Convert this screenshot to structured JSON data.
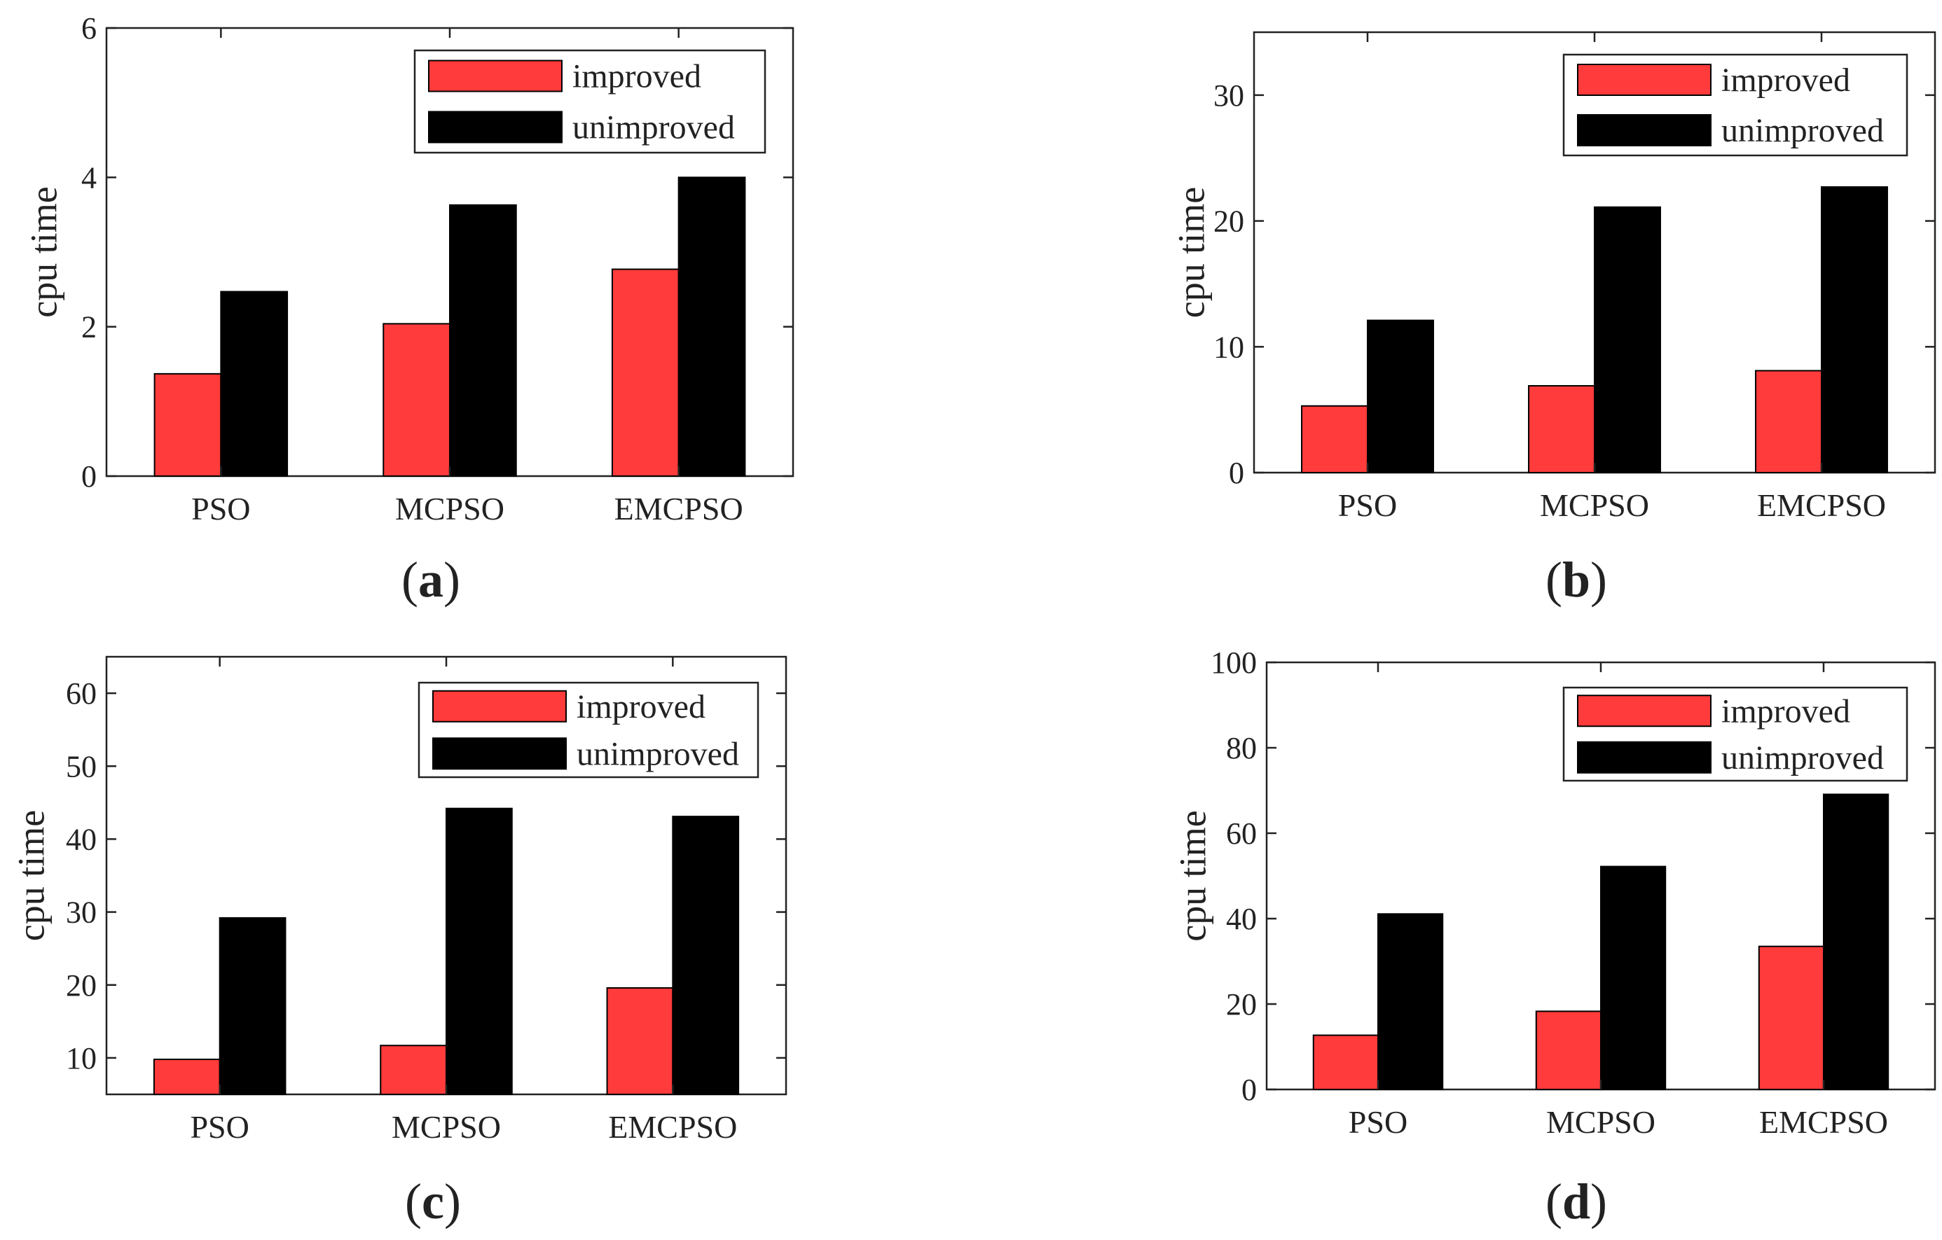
{
  "colors": {
    "improved": "#ff3b3b",
    "unimproved": "#000000",
    "axis": "#222222"
  },
  "chart_data": [
    {
      "type": "bar",
      "panel": "a",
      "panel_label": "a",
      "categories": [
        "PSO",
        "MCPSO",
        "EMCPSO"
      ],
      "series": [
        {
          "name": "improved",
          "values": [
            1.37,
            2.04,
            2.77
          ]
        },
        {
          "name": "unimproved",
          "values": [
            2.47,
            3.63,
            4.0
          ]
        }
      ],
      "ylabel": "cpu time",
      "xlabel": "",
      "ylim": [
        0,
        6
      ],
      "yticks": [
        0,
        2,
        4,
        6
      ],
      "ytick_labels": [
        "0",
        "2",
        "4",
        "6"
      ],
      "legend": [
        "improved",
        "unimproved"
      ],
      "legend_position": "top-right"
    },
    {
      "type": "bar",
      "panel": "b",
      "panel_label": "b",
      "categories": [
        "PSO",
        "MCPSO",
        "EMCPSO"
      ],
      "series": [
        {
          "name": "improved",
          "values": [
            5.3,
            6.9,
            8.1
          ]
        },
        {
          "name": "unimproved",
          "values": [
            12.1,
            21.1,
            22.7
          ]
        }
      ],
      "ylabel": "cpu time",
      "xlabel": "",
      "ylim": [
        0,
        35
      ],
      "yticks": [
        0,
        10,
        20,
        30
      ],
      "ytick_labels": [
        "0",
        "10",
        "20",
        "30"
      ],
      "legend": [
        "improved",
        "unimproved"
      ],
      "legend_position": "top-right"
    },
    {
      "type": "bar",
      "panel": "c",
      "panel_label": "c",
      "categories": [
        "PSO",
        "MCPSO",
        "EMCPSO"
      ],
      "series": [
        {
          "name": "improved",
          "values": [
            9.8,
            11.7,
            19.6
          ]
        },
        {
          "name": "unimproved",
          "values": [
            29.2,
            44.2,
            43.1
          ]
        }
      ],
      "ylabel": "cpu time",
      "xlabel": "",
      "ylim": [
        5,
        65
      ],
      "yticks": [
        10,
        20,
        30,
        40,
        50,
        60
      ],
      "ytick_labels": [
        "10",
        "20",
        "30",
        "40",
        "50",
        "60"
      ],
      "legend": [
        "improved",
        "unimproved"
      ],
      "legend_position": "top-right"
    },
    {
      "type": "bar",
      "panel": "d",
      "panel_label": "d",
      "categories": [
        "PSO",
        "MCPSO",
        "EMCPSO"
      ],
      "series": [
        {
          "name": "improved",
          "values": [
            12.7,
            18.3,
            33.5
          ]
        },
        {
          "name": "unimproved",
          "values": [
            41.1,
            52.2,
            69.1
          ]
        }
      ],
      "ylabel": "cpu time",
      "xlabel": "",
      "ylim": [
        0,
        100
      ],
      "yticks": [
        0,
        20,
        40,
        60,
        80,
        100
      ],
      "ytick_labels": [
        "0",
        "20",
        "40",
        "60",
        "80",
        "100"
      ],
      "legend": [
        "improved",
        "unimproved"
      ],
      "legend_position": "top-right"
    }
  ]
}
